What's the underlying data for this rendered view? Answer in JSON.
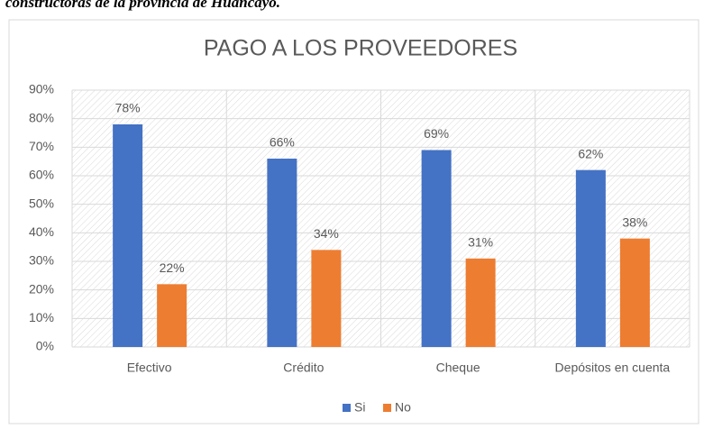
{
  "caption": "constructoras de la provincia de Huancayo.",
  "chart_data": {
    "type": "bar",
    "title": "PAGO A LOS PROVEEDORES",
    "categories": [
      "Efectivo",
      "Crédito",
      "Cheque",
      "Depósitos en cuenta"
    ],
    "series": [
      {
        "name": "Si",
        "color": "#4472c4",
        "values": [
          78,
          66,
          69,
          62
        ],
        "value_labels": [
          "78%",
          "66%",
          "69%",
          "62%"
        ]
      },
      {
        "name": "No",
        "color": "#ed7d31",
        "values": [
          22,
          34,
          31,
          38
        ],
        "value_labels": [
          "22%",
          "34%",
          "31%",
          "38%"
        ]
      }
    ],
    "ylim": [
      0,
      90
    ],
    "yticks": [
      {
        "value": 0,
        "label": "0%"
      },
      {
        "value": 10,
        "label": "10%"
      },
      {
        "value": 20,
        "label": "20%"
      },
      {
        "value": 30,
        "label": "30%"
      },
      {
        "value": 40,
        "label": "40%"
      },
      {
        "value": 50,
        "label": "50%"
      },
      {
        "value": 60,
        "label": "60%"
      },
      {
        "value": 70,
        "label": "70%"
      },
      {
        "value": 80,
        "label": "80%"
      },
      {
        "value": 90,
        "label": "90%"
      }
    ],
    "grid": true,
    "legend": "bottom"
  }
}
